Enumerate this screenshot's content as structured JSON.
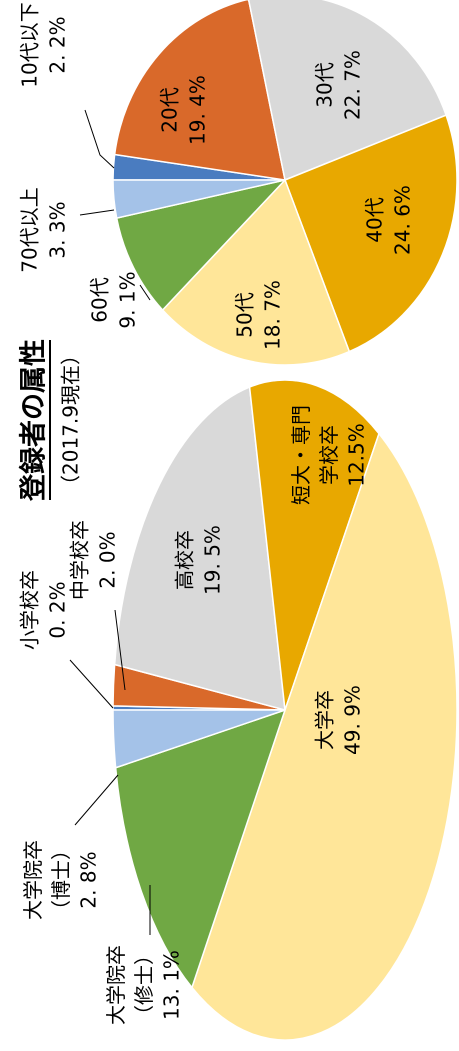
{
  "title": "登録者の属性",
  "subtitle": "（2017.9現在）",
  "chart_data": [
    {
      "type": "pie",
      "categories": [
        "10代以下",
        "20代",
        "30代",
        "40代",
        "50代",
        "60代",
        "70代以上"
      ],
      "values": [
        2.2,
        19.4,
        22.7,
        24.6,
        18.7,
        9.1,
        3.3
      ],
      "value_labels": [
        "2. 2%",
        "19. 4%",
        "22. 7%",
        "24. 6%",
        "18. 7%",
        "9. 1%",
        "3. 3%"
      ],
      "colors": [
        "#4a7cc0",
        "#d9692a",
        "#d9d9d9",
        "#e8a800",
        "#ffe699",
        "#70a844",
        "#a4c2e8"
      ]
    },
    {
      "type": "pie",
      "categories": [
        "小学校卒",
        "中学校卒",
        "高校卒",
        "短大・専門\n学校卒",
        "大学卒",
        "大学院卒\n（修士）",
        "大学院卒\n（博士）"
      ],
      "values": [
        0.2,
        2.0,
        19.5,
        12.5,
        49.9,
        13.1,
        2.8
      ],
      "value_labels": [
        "0. 2%",
        "2. 0%",
        "19. 5%",
        "12.5%",
        "49. 9%",
        "13. 1%",
        "2. 8%"
      ],
      "colors": [
        "#4a7cc0",
        "#d9692a",
        "#d9d9d9",
        "#e8a800",
        "#ffe699",
        "#70a844",
        "#a4c2e8"
      ]
    }
  ]
}
